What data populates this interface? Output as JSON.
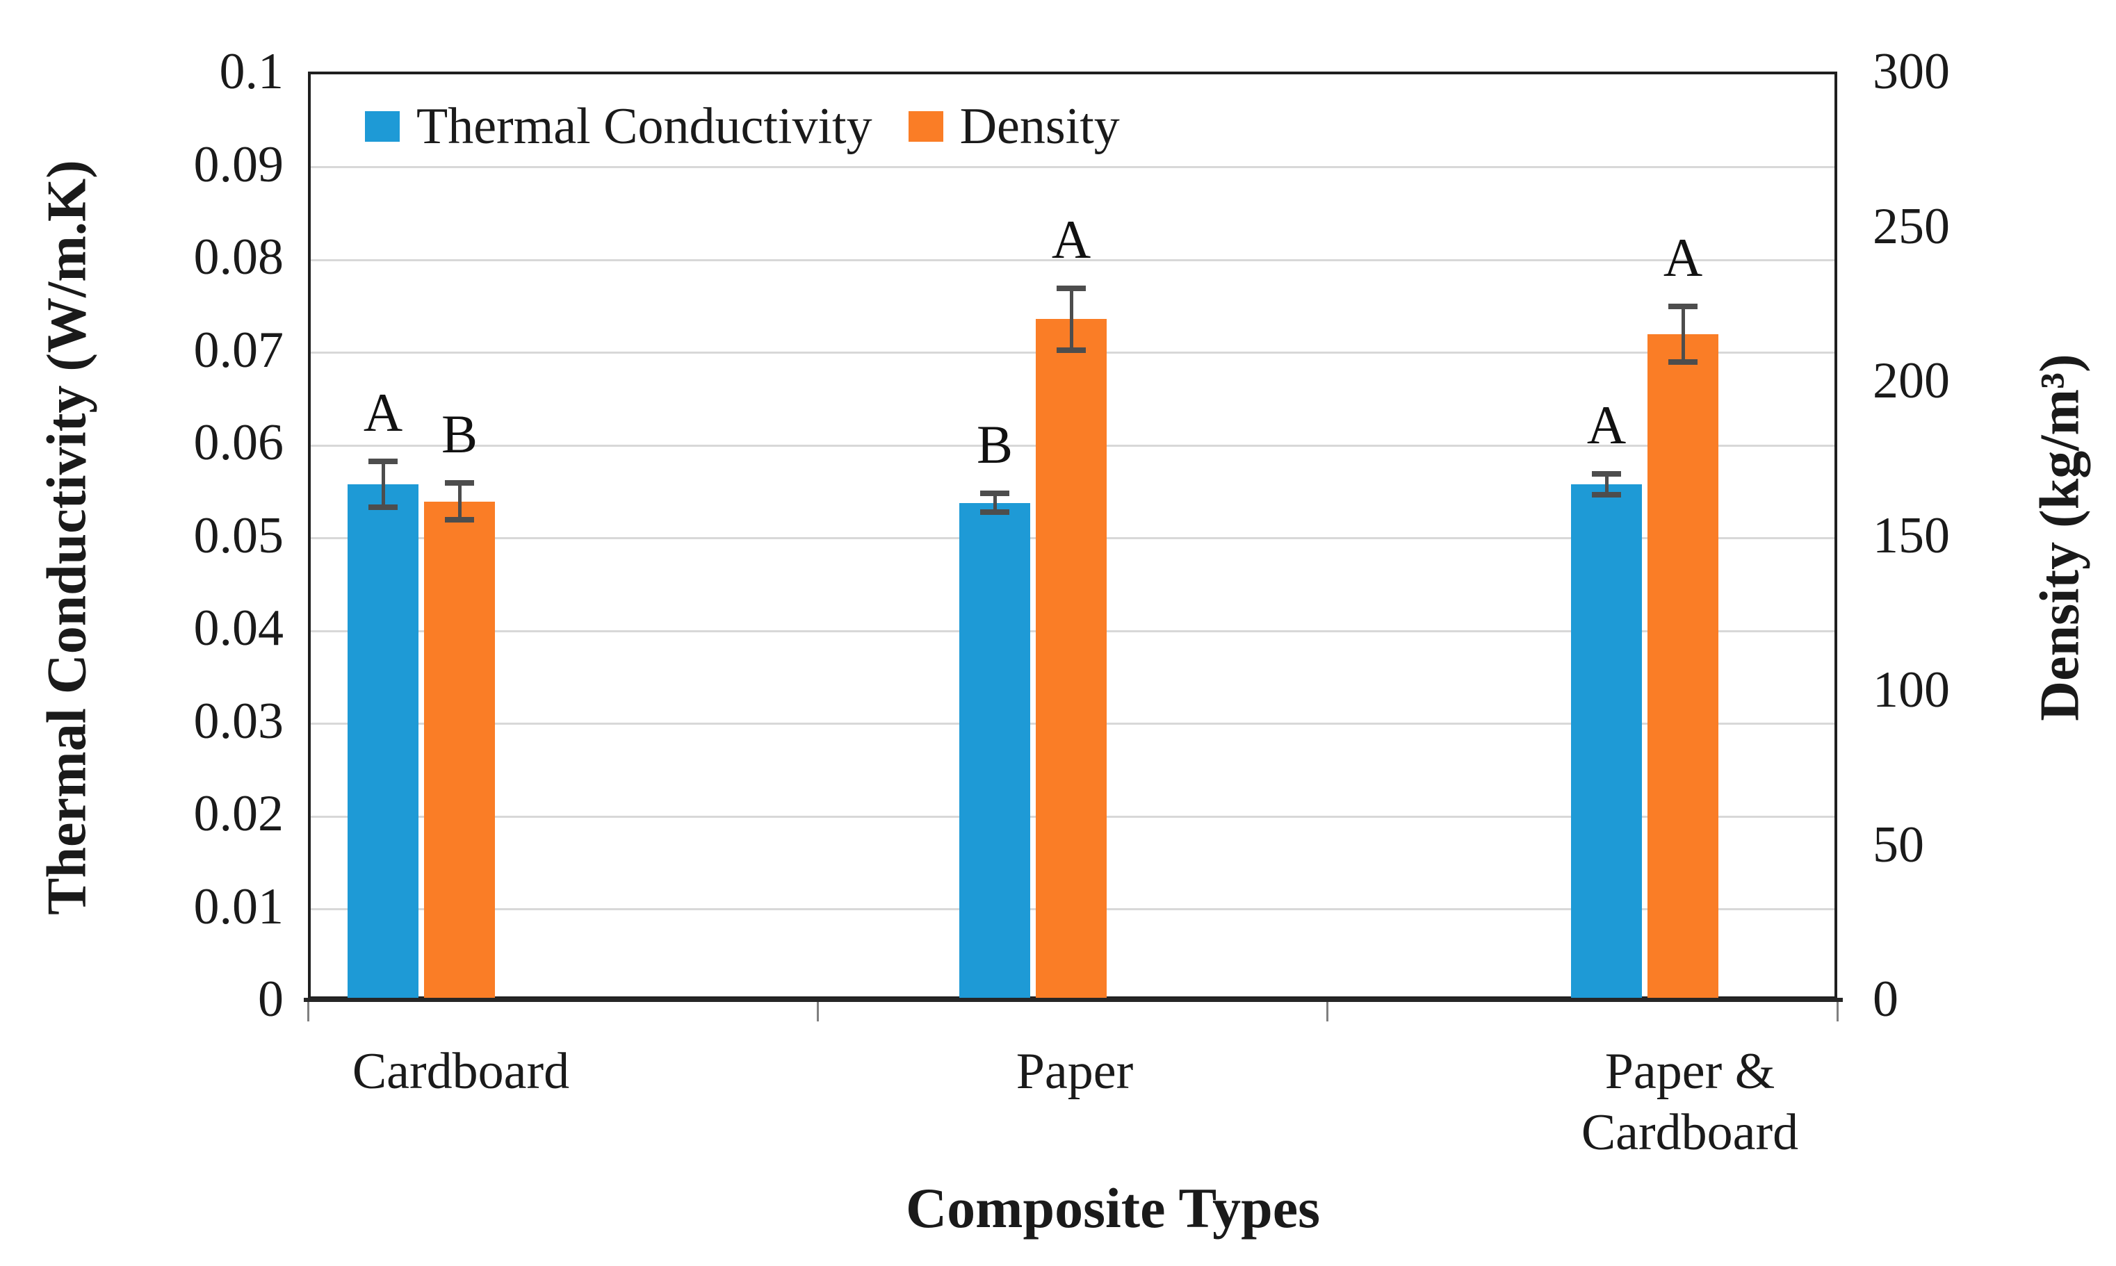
{
  "chart_data": {
    "type": "bar",
    "title": "",
    "xlabel": "Composite Types",
    "categories": [
      "Cardboard",
      "Paper",
      "Paper & Cardboard"
    ],
    "series": [
      {
        "name": "Thermal Conductivity",
        "axis": "left",
        "color": "#1E9AD6",
        "values": [
          0.0555,
          0.0535,
          0.0555
        ],
        "errors": [
          0.0025,
          0.001,
          0.0011
        ],
        "significance_letters": [
          "A",
          "B",
          "A"
        ]
      },
      {
        "name": "Density",
        "axis": "right",
        "color": "#FA7D26",
        "values": [
          161,
          220,
          215
        ],
        "errors": [
          6,
          10,
          9
        ],
        "significance_letters": [
          "B",
          "A",
          "A"
        ]
      }
    ],
    "left_axis": {
      "label": "Thermal Conductivity (W/m.K)",
      "min": 0,
      "max": 0.1,
      "ticks": [
        0.1,
        0.09,
        0.08,
        0.07,
        0.06,
        0.05,
        0.04,
        0.03,
        0.02,
        0.01,
        0
      ],
      "tick_labels": [
        "0.1",
        "0.09",
        "0.08",
        "0.07",
        "0.06",
        "0.05",
        "0.04",
        "0.03",
        "0.02",
        "0.01",
        "0"
      ]
    },
    "right_axis": {
      "label": "Density (kg/m³)",
      "min": 0,
      "max": 300,
      "ticks": [
        300,
        250,
        200,
        150,
        100,
        50,
        0
      ],
      "tick_labels": [
        "300",
        "250",
        "200",
        "150",
        "100",
        "50",
        "0"
      ]
    },
    "grid": true,
    "legend_position": "top-inside",
    "error_bar_color": "#4D4D4D"
  }
}
